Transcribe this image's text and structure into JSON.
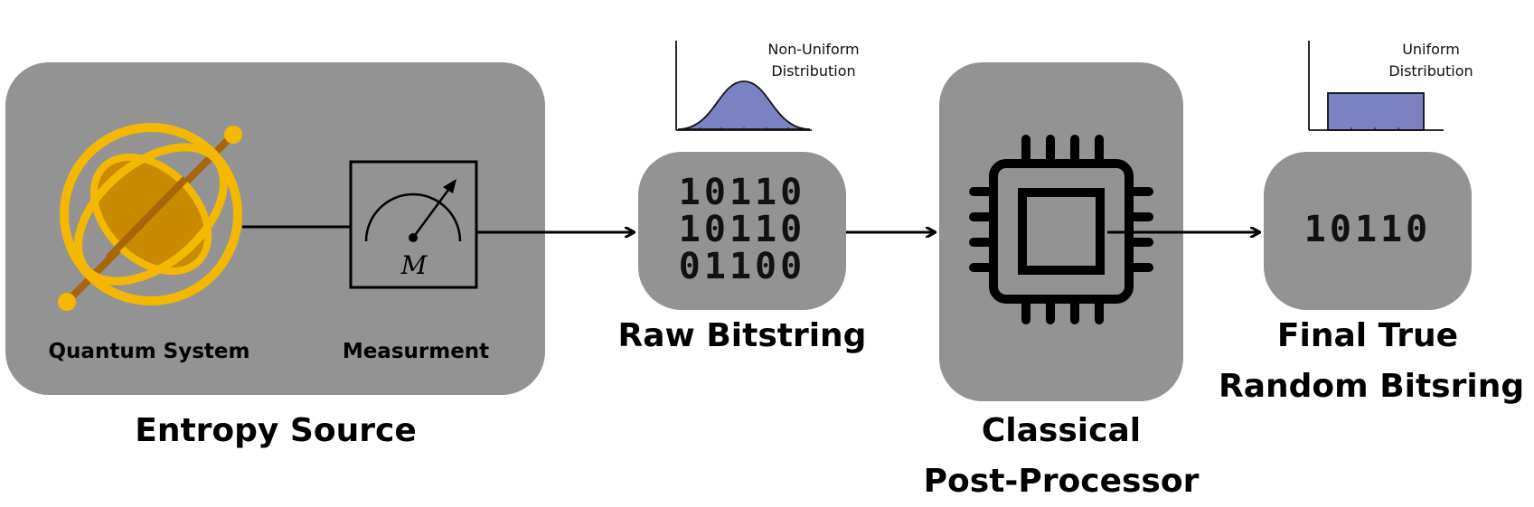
{
  "entropy_source": {
    "title": "Entropy Source",
    "quantum_label": "Quantum System",
    "measurement_label": "Measurment",
    "meter_symbol": "M"
  },
  "raw": {
    "title": "Raw Bitstring",
    "bits": [
      "10110",
      "10110",
      "01100"
    ],
    "distribution_line1": "Non-Uniform",
    "distribution_line2": "Distribution"
  },
  "processor": {
    "title_line1": "Classical",
    "title_line2": "Post-Processor"
  },
  "final": {
    "title_line1": "Final True",
    "title_line2": "Random Bitsring",
    "bits": "10110",
    "distribution_line1": "Uniform",
    "distribution_line2": "Distribution"
  },
  "colors": {
    "box": "#939393",
    "gold": "#F5B800",
    "dark_gold": "#C98A00",
    "rod": "#A8650A",
    "dist_fill": "#7B82C2"
  }
}
